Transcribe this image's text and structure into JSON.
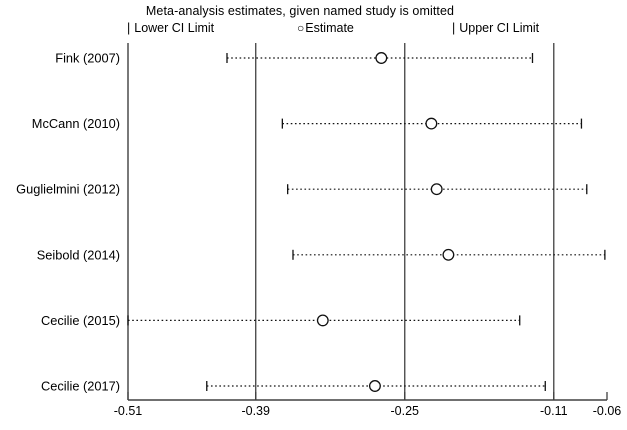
{
  "chart_data": {
    "type": "scatter",
    "subtype": "leave-one-out-forest",
    "title": "Meta-analysis estimates, given named study is omitted",
    "legend": [
      {
        "marker": "|",
        "label": "Lower CI Limit"
      },
      {
        "marker": "○",
        "label": "Estimate"
      },
      {
        "marker": "|",
        "label": "Upper CI Limit"
      }
    ],
    "studies": [
      {
        "name": "Fink (2007)",
        "lower": -0.417,
        "estimate": -0.272,
        "upper": -0.13
      },
      {
        "name": "McCann (2010)",
        "lower": -0.365,
        "estimate": -0.225,
        "upper": -0.084
      },
      {
        "name": "Guglielmini (2012)",
        "lower": -0.36,
        "estimate": -0.22,
        "upper": -0.079
      },
      {
        "name": "Seibold (2014)",
        "lower": -0.355,
        "estimate": -0.209,
        "upper": -0.062
      },
      {
        "name": "Cecilie (2015)",
        "lower": -0.51,
        "estimate": -0.327,
        "upper": -0.142
      },
      {
        "name": "Cecilie (2017)",
        "lower": -0.436,
        "estimate": -0.278,
        "upper": -0.118
      }
    ],
    "x_range": [
      -0.51,
      -0.06
    ],
    "x_ticks": [
      -0.51,
      -0.39,
      -0.25,
      -0.11,
      -0.06
    ],
    "x_tick_labels": [
      "-0.51",
      "-0.39",
      "-0.25",
      "-0.11",
      "-0.06"
    ],
    "ref_lines": [
      -0.39,
      -0.25,
      -0.11
    ],
    "grid": "vertical-reference-lines-only",
    "legend_position": "top",
    "colors": {
      "background": "#ffffff",
      "axis_line": "#404040",
      "ref_line": "#404040",
      "ci_line": "#111111",
      "marker_stroke": "#111111",
      "marker_fill": "#ffffff",
      "text": "#000000"
    }
  }
}
